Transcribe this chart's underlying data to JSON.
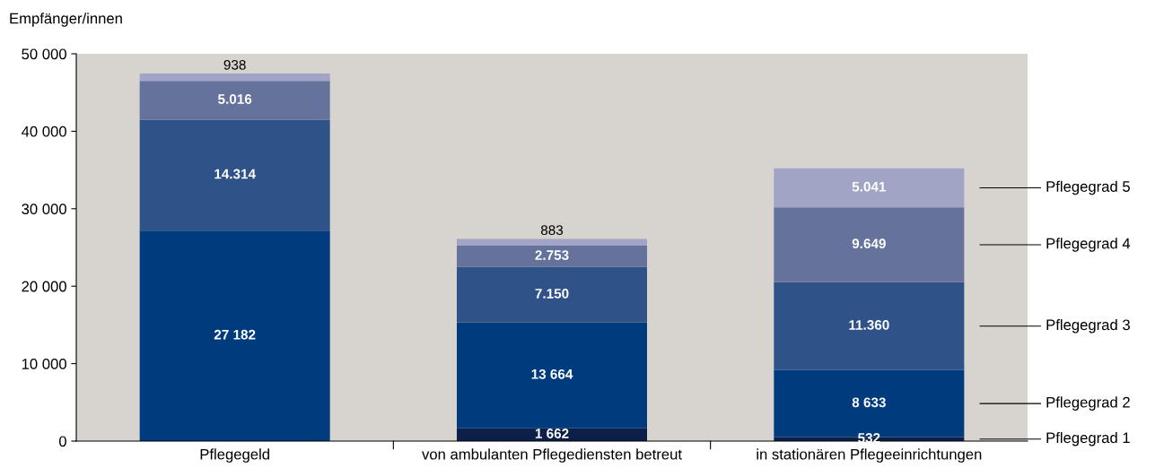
{
  "chart_data": {
    "type": "bar",
    "stacked": true,
    "ylabel": "Empfänger/innen",
    "categories": [
      "Pflegegeld",
      "von ambulanten Pflegediensten betreut",
      "in stationären Pflegeeinrichtungen"
    ],
    "series": [
      {
        "name": "Pflegegrad 1",
        "color": "#0b1f48",
        "values": [
          null,
          1662,
          532
        ],
        "value_labels": [
          null,
          "1 662",
          "532"
        ]
      },
      {
        "name": "Pflegegrad 2",
        "color": "#003b7e",
        "values": [
          27182,
          13664,
          8633
        ],
        "value_labels": [
          "27 182",
          "13 664",
          "8 633"
        ]
      },
      {
        "name": "Pflegegrad 3",
        "color": "#2f5388",
        "values": [
          14314,
          7150,
          11360
        ],
        "value_labels": [
          "14.314",
          "7.150",
          "11.360"
        ]
      },
      {
        "name": "Pflegegrad 4",
        "color": "#64729c",
        "values": [
          5016,
          2753,
          9649
        ],
        "value_labels": [
          "5.016",
          "2.753",
          "9.649"
        ]
      },
      {
        "name": "Pflegegrad 5",
        "color": "#a1a4c5",
        "values": [
          938,
          883,
          5041
        ],
        "value_labels": [
          "938",
          "883",
          "5.041"
        ]
      }
    ],
    "ylim": [
      0,
      50000
    ],
    "yticks": [
      {
        "value": 0,
        "label": "0"
      },
      {
        "value": 10000,
        "label": "10 000"
      },
      {
        "value": 20000,
        "label": "20 000"
      },
      {
        "value": 30000,
        "label": "30 000"
      },
      {
        "value": 40000,
        "label": "40 000"
      },
      {
        "value": 50000,
        "label": "50 000"
      }
    ],
    "grid": false,
    "legend": "right"
  }
}
